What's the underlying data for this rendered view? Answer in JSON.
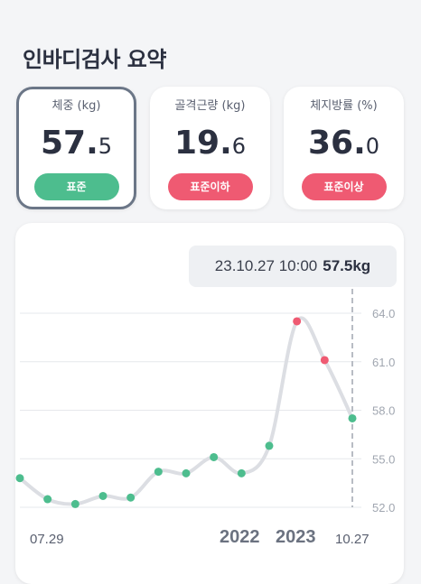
{
  "page": {
    "title": "인바디검사 요약"
  },
  "cards": [
    {
      "label": "체중 (kg)",
      "int": "57.",
      "dec": "5",
      "status": "표준",
      "status_color": "#4dbd8e",
      "selected": true
    },
    {
      "label": "골격근량 (kg)",
      "int": "19.",
      "dec": "6",
      "status": "표준이하",
      "status_color": "#ef5a72",
      "selected": false
    },
    {
      "label": "체지방률 (%)",
      "int": "36.",
      "dec": "0",
      "status": "표준이상",
      "status_color": "#ef5a72",
      "selected": false
    }
  ],
  "tooltip": {
    "datetime": "23.10.27 10:00",
    "value": "57.5kg"
  },
  "chart_data": {
    "type": "line",
    "series": [
      {
        "values": [
          53.8,
          52.5,
          52.2,
          52.7,
          52.6,
          54.2,
          54.1,
          55.1,
          54.1,
          55.8,
          63.5,
          61.1,
          57.5
        ],
        "point_status": [
          "normal",
          "normal",
          "normal",
          "normal",
          "normal",
          "normal",
          "normal",
          "normal",
          "normal",
          "normal",
          "high",
          "high",
          "normal"
        ]
      }
    ],
    "ylim": [
      52.0,
      64.0
    ],
    "yticks": [
      "64.0",
      "61.0",
      "58.0",
      "55.0",
      "52.0"
    ],
    "x_labels": [
      "07.29",
      "10.27"
    ],
    "year_labels": [
      "2022",
      "2023"
    ],
    "colors": {
      "line": "#dcdee3",
      "normal": "#4dbd8e",
      "high": "#ef5a72",
      "grid": "#e6e8ec",
      "tick": "#a0a6b0"
    }
  }
}
